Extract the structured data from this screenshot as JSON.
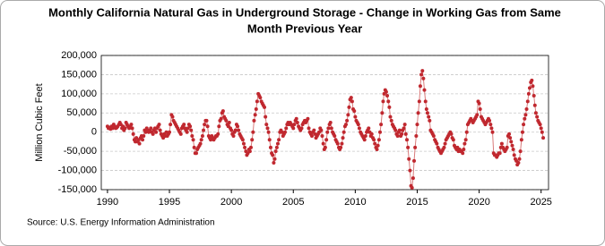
{
  "chart_data": {
    "type": "line",
    "title": [
      "Monthly California Natural Gas in Underground Storage - Change in Working Gas from Same",
      "Month Previous Year"
    ],
    "ylabel": "Million Cubic Feet",
    "source": "Source: U.S. Energy Information Administration",
    "grid": true,
    "xlim": [
      1989.5,
      2025.6
    ],
    "xticks": [
      1990,
      1995,
      2000,
      2005,
      2010,
      2015,
      2020,
      2025
    ],
    "ylim": [
      -150000,
      200000
    ],
    "yticks": [
      {
        "value": -150000,
        "label": "-150,000"
      },
      {
        "value": -100000,
        "label": "-100,000"
      },
      {
        "value": -50000,
        "label": "-50,000"
      },
      0,
      {
        "value": 50000,
        "label": "50,000"
      },
      {
        "value": 100000,
        "label": "100,000"
      },
      {
        "value": 150000,
        "label": "150,000"
      },
      {
        "value": 200000,
        "label": "200,000"
      }
    ],
    "x": [
      1990.0,
      1990.08,
      1990.17,
      1990.25,
      1990.33,
      1990.42,
      1990.5,
      1990.58,
      1990.67,
      1990.75,
      1990.83,
      1990.92,
      1991.0,
      1991.08,
      1991.17,
      1991.25,
      1991.33,
      1991.42,
      1991.5,
      1991.58,
      1991.67,
      1991.75,
      1991.83,
      1991.92,
      1992.0,
      1992.08,
      1992.17,
      1992.25,
      1992.33,
      1992.42,
      1992.5,
      1992.58,
      1992.67,
      1992.75,
      1992.83,
      1992.92,
      1993.0,
      1993.08,
      1993.17,
      1993.25,
      1993.33,
      1993.42,
      1993.5,
      1993.58,
      1993.67,
      1993.75,
      1993.83,
      1993.92,
      1994.0,
      1994.08,
      1994.17,
      1994.25,
      1994.33,
      1994.42,
      1994.5,
      1994.58,
      1994.67,
      1994.75,
      1994.83,
      1994.92,
      1995.0,
      1995.08,
      1995.17,
      1995.25,
      1995.33,
      1995.42,
      1995.5,
      1995.58,
      1995.67,
      1995.75,
      1995.83,
      1995.92,
      1996.0,
      1996.08,
      1996.17,
      1996.25,
      1996.33,
      1996.42,
      1996.5,
      1996.58,
      1996.67,
      1996.75,
      1996.83,
      1996.92,
      1997.0,
      1997.08,
      1997.17,
      1997.25,
      1997.33,
      1997.42,
      1997.5,
      1997.58,
      1997.67,
      1997.75,
      1997.83,
      1997.92,
      1998.0,
      1998.08,
      1998.17,
      1998.25,
      1998.33,
      1998.42,
      1998.5,
      1998.58,
      1998.67,
      1998.75,
      1998.83,
      1998.92,
      1999.0,
      1999.08,
      1999.17,
      1999.25,
      1999.33,
      1999.42,
      1999.5,
      1999.58,
      1999.67,
      1999.75,
      1999.83,
      1999.92,
      2000.0,
      2000.08,
      2000.17,
      2000.25,
      2000.33,
      2000.42,
      2000.5,
      2000.58,
      2000.67,
      2000.75,
      2000.83,
      2000.92,
      2001.0,
      2001.08,
      2001.17,
      2001.25,
      2001.33,
      2001.42,
      2001.5,
      2001.58,
      2001.67,
      2001.75,
      2001.83,
      2001.92,
      2002.0,
      2002.08,
      2002.17,
      2002.25,
      2002.33,
      2002.42,
      2002.5,
      2002.58,
      2002.67,
      2002.75,
      2002.83,
      2002.92,
      2003.0,
      2003.08,
      2003.17,
      2003.25,
      2003.33,
      2003.42,
      2003.5,
      2003.58,
      2003.67,
      2003.75,
      2003.83,
      2003.92,
      2004.0,
      2004.08,
      2004.17,
      2004.25,
      2004.33,
      2004.42,
      2004.5,
      2004.58,
      2004.67,
      2004.75,
      2004.83,
      2004.92,
      2005.0,
      2005.08,
      2005.17,
      2005.25,
      2005.33,
      2005.42,
      2005.5,
      2005.58,
      2005.67,
      2005.75,
      2005.83,
      2005.92,
      2006.0,
      2006.08,
      2006.17,
      2006.25,
      2006.33,
      2006.42,
      2006.5,
      2006.58,
      2006.67,
      2006.75,
      2006.83,
      2006.92,
      2007.0,
      2007.08,
      2007.17,
      2007.25,
      2007.33,
      2007.42,
      2007.5,
      2007.58,
      2007.67,
      2007.75,
      2007.83,
      2007.92,
      2008.0,
      2008.08,
      2008.17,
      2008.25,
      2008.33,
      2008.42,
      2008.5,
      2008.58,
      2008.67,
      2008.75,
      2008.83,
      2008.92,
      2009.0,
      2009.08,
      2009.17,
      2009.25,
      2009.33,
      2009.42,
      2009.5,
      2009.58,
      2009.67,
      2009.75,
      2009.83,
      2009.92,
      2010.0,
      2010.08,
      2010.17,
      2010.25,
      2010.33,
      2010.42,
      2010.5,
      2010.58,
      2010.67,
      2010.75,
      2010.83,
      2010.92,
      2011.0,
      2011.08,
      2011.17,
      2011.25,
      2011.33,
      2011.42,
      2011.5,
      2011.58,
      2011.67,
      2011.75,
      2011.83,
      2011.92,
      2012.0,
      2012.08,
      2012.17,
      2012.25,
      2012.33,
      2012.42,
      2012.5,
      2012.58,
      2012.67,
      2012.75,
      2012.83,
      2012.92,
      2013.0,
      2013.08,
      2013.17,
      2013.25,
      2013.33,
      2013.42,
      2013.5,
      2013.58,
      2013.67,
      2013.75,
      2013.83,
      2013.92,
      2014.0,
      2014.08,
      2014.17,
      2014.25,
      2014.33,
      2014.42,
      2014.5,
      2014.58,
      2014.67,
      2014.75,
      2014.83,
      2014.92,
      2015.0,
      2015.08,
      2015.17,
      2015.25,
      2015.33,
      2015.42,
      2015.5,
      2015.58,
      2015.67,
      2015.75,
      2015.83,
      2015.92,
      2016.0,
      2016.08,
      2016.17,
      2016.25,
      2016.33,
      2016.42,
      2016.5,
      2016.58,
      2016.67,
      2016.75,
      2016.83,
      2016.92,
      2017.0,
      2017.08,
      2017.17,
      2017.25,
      2017.33,
      2017.42,
      2017.5,
      2017.58,
      2017.67,
      2017.75,
      2017.83,
      2017.92,
      2018.0,
      2018.08,
      2018.17,
      2018.25,
      2018.33,
      2018.42,
      2018.5,
      2018.58,
      2018.67,
      2018.75,
      2018.83,
      2018.92,
      2019.0,
      2019.08,
      2019.17,
      2019.25,
      2019.33,
      2019.42,
      2019.5,
      2019.58,
      2019.67,
      2019.75,
      2019.83,
      2019.92,
      2020.0,
      2020.08,
      2020.17,
      2020.25,
      2020.33,
      2020.42,
      2020.5,
      2020.58,
      2020.67,
      2020.75,
      2020.83,
      2020.92,
      2021.0,
      2021.08,
      2021.17,
      2021.25,
      2021.33,
      2021.42,
      2021.5,
      2021.58,
      2021.67,
      2021.75,
      2021.83,
      2021.92,
      2022.0,
      2022.08,
      2022.17,
      2022.25,
      2022.33,
      2022.42,
      2022.5,
      2022.58,
      2022.67,
      2022.75,
      2022.83,
      2022.92,
      2023.0,
      2023.08,
      2023.17,
      2023.25,
      2023.33,
      2023.42,
      2023.5,
      2023.58,
      2023.67,
      2023.75,
      2023.83,
      2023.92,
      2024.0,
      2024.08,
      2024.17,
      2024.25,
      2024.33,
      2024.42,
      2024.5,
      2024.58,
      2024.67,
      2024.75,
      2024.83,
      2024.92,
      2025.0,
      2025.08,
      2025.17
    ],
    "series": [
      {
        "color": "#c0282f",
        "line_color": "#d97b7b",
        "values": [
          15000,
          10000,
          12000,
          8000,
          15000,
          10000,
          20000,
          15000,
          10000,
          12000,
          15000,
          20000,
          25000,
          20000,
          10000,
          15000,
          5000,
          10000,
          25000,
          20000,
          15000,
          10000,
          15000,
          20000,
          10000,
          -5000,
          -20000,
          -25000,
          -15000,
          -25000,
          -20000,
          -30000,
          -15000,
          -10000,
          -20000,
          -10000,
          5000,
          0,
          10000,
          5000,
          0,
          5000,
          10000,
          0,
          -5000,
          5000,
          10000,
          0,
          10000,
          15000,
          20000,
          5000,
          -5000,
          -10000,
          -15000,
          -5000,
          -10000,
          0,
          -10000,
          -5000,
          0,
          20000,
          45000,
          40000,
          30000,
          25000,
          20000,
          15000,
          10000,
          5000,
          0,
          -5000,
          10000,
          15000,
          20000,
          10000,
          5000,
          0,
          10000,
          20000,
          15000,
          5000,
          -10000,
          -20000,
          -40000,
          -55000,
          -55000,
          -45000,
          -40000,
          -35000,
          -30000,
          -20000,
          -10000,
          5000,
          20000,
          30000,
          30000,
          15000,
          -10000,
          -15000,
          -20000,
          -10000,
          -15000,
          -20000,
          -15000,
          -10000,
          -10000,
          -5000,
          15000,
          30000,
          35000,
          50000,
          55000,
          40000,
          35000,
          30000,
          20000,
          15000,
          25000,
          10000,
          5000,
          -5000,
          -10000,
          0,
          5000,
          20000,
          15000,
          5000,
          -5000,
          -10000,
          -15000,
          -20000,
          -30000,
          -40000,
          -50000,
          -60000,
          -55000,
          -45000,
          -50000,
          -40000,
          -20000,
          0,
          30000,
          45000,
          60000,
          80000,
          100000,
          95000,
          90000,
          80000,
          75000,
          70000,
          65000,
          40000,
          20000,
          10000,
          0,
          -20000,
          -40000,
          -55000,
          -60000,
          -80000,
          -70000,
          -50000,
          -40000,
          -30000,
          -20000,
          0,
          5000,
          0,
          -10000,
          -5000,
          0,
          10000,
          20000,
          25000,
          20000,
          25000,
          20000,
          15000,
          10000,
          20000,
          30000,
          35000,
          25000,
          15000,
          10000,
          5000,
          10000,
          20000,
          25000,
          30000,
          25000,
          30000,
          35000,
          10000,
          0,
          -5000,
          -10000,
          0,
          5000,
          -5000,
          -15000,
          -10000,
          -5000,
          0,
          10000,
          5000,
          -10000,
          -30000,
          -45000,
          -40000,
          -20000,
          0,
          10000,
          20000,
          25000,
          10000,
          0,
          -5000,
          -10000,
          -20000,
          -25000,
          -30000,
          -40000,
          -45000,
          -40000,
          -30000,
          -15000,
          0,
          15000,
          20000,
          30000,
          45000,
          65000,
          85000,
          90000,
          80000,
          60000,
          55000,
          40000,
          30000,
          25000,
          20000,
          10000,
          0,
          -5000,
          -10000,
          -15000,
          -20000,
          -10000,
          0,
          5000,
          10000,
          0,
          -10000,
          -5000,
          -15000,
          -20000,
          -30000,
          -40000,
          -45000,
          -35000,
          -20000,
          0,
          20000,
          50000,
          80000,
          100000,
          110000,
          105000,
          95000,
          80000,
          65000,
          40000,
          30000,
          20000,
          15000,
          10000,
          5000,
          -5000,
          -10000,
          0,
          5000,
          -10000,
          -5000,
          5000,
          10000,
          20000,
          -5000,
          -20000,
          -40000,
          -70000,
          -100000,
          -140000,
          -145000,
          -120000,
          -75000,
          -40000,
          -10000,
          20000,
          50000,
          80000,
          120000,
          150000,
          160000,
          140000,
          110000,
          80000,
          60000,
          50000,
          40000,
          30000,
          5000,
          0,
          -5000,
          -10000,
          -20000,
          -25000,
          -30000,
          -40000,
          -45000,
          -50000,
          -55000,
          -50000,
          -45000,
          -40000,
          -30000,
          -20000,
          -15000,
          -10000,
          -5000,
          0,
          -5000,
          -15000,
          -20000,
          -35000,
          -40000,
          -45000,
          -40000,
          -50000,
          -45000,
          -50000,
          -50000,
          -55000,
          -45000,
          -30000,
          -20000,
          0,
          20000,
          25000,
          30000,
          35000,
          30000,
          25000,
          30000,
          35000,
          40000,
          45000,
          80000,
          75000,
          60000,
          40000,
          35000,
          30000,
          25000,
          20000,
          25000,
          30000,
          35000,
          30000,
          20000,
          10000,
          0,
          -55000,
          -60000,
          -60000,
          -65000,
          -60000,
          -55000,
          -55000,
          -40000,
          -30000,
          -40000,
          -45000,
          -50000,
          -45000,
          -40000,
          -10000,
          -5000,
          -15000,
          -25000,
          -35000,
          -45000,
          -60000,
          -70000,
          -75000,
          -85000,
          -80000,
          -70000,
          -50000,
          -20000,
          0,
          20000,
          35000,
          45000,
          60000,
          80000,
          100000,
          115000,
          130000,
          135000,
          120000,
          95000,
          70000,
          50000,
          40000,
          30000,
          25000,
          20000,
          10000,
          0,
          -15000
        ]
      }
    ]
  }
}
